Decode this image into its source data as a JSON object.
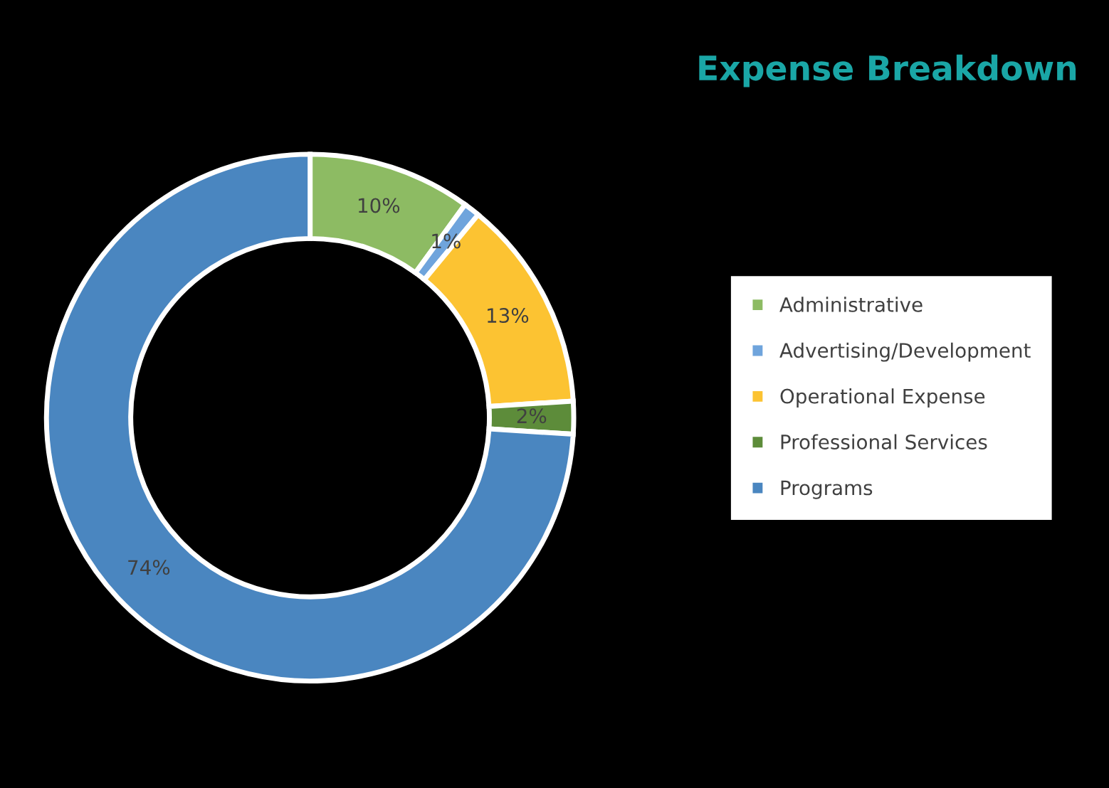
{
  "chart_data": {
    "type": "donut",
    "title": "Expense Breakdown",
    "categories": [
      "Administrative",
      "Advertising/Development",
      "Operational Expense",
      "Professional Services",
      "Programs"
    ],
    "values": [
      10,
      1,
      13,
      2,
      74
    ],
    "colors": [
      "#8dbb63",
      "#6fa4dc",
      "#fcc332",
      "#5d8c3a",
      "#4a86c0"
    ],
    "value_labels": [
      "10%",
      "1%",
      "13%",
      "2%",
      "74%"
    ],
    "legend": "right"
  }
}
